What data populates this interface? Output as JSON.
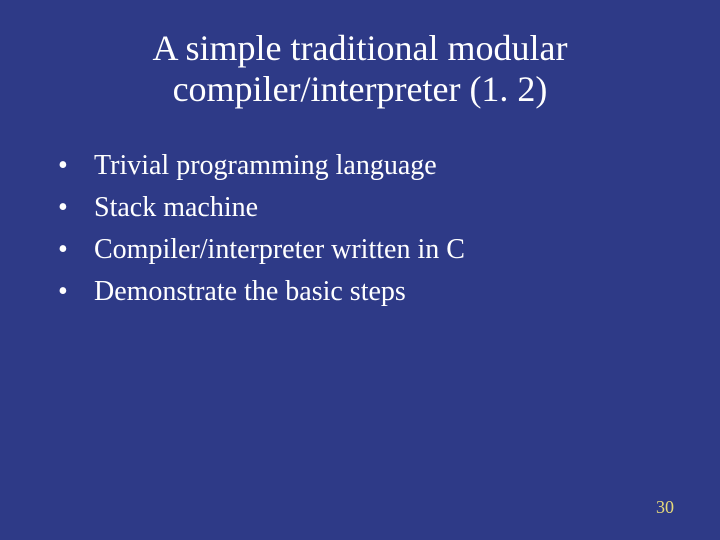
{
  "slide": {
    "background_color": "#2e3a87",
    "text_color": "#ffffff",
    "title": {
      "line1": "A simple traditional modular",
      "line2": "compiler/interpreter (1. 2)",
      "font_size": 36,
      "font_family": "Times New Roman",
      "align": "center"
    },
    "bullets": {
      "font_size": 28,
      "marker": "•",
      "items": [
        "Trivial programming language",
        "Stack machine",
        "Compiler/interpreter written in C",
        "Demonstrate the basic steps"
      ]
    },
    "page_number": {
      "value": "30",
      "color": "#e6d97a",
      "font_size": 18
    }
  }
}
